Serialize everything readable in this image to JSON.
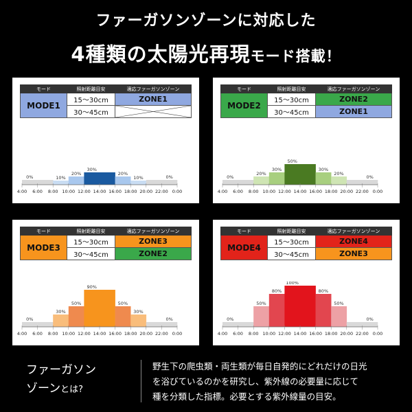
{
  "header": {
    "line1": "ファーガソンゾーンに対応した",
    "line2_big": "4種類の太陽光再現",
    "line2_small": "モード搭載！"
  },
  "table_headers": [
    "モード",
    "照射距離目安",
    "適応ファーガソンゾーン"
  ],
  "colors": {
    "background": "#000000",
    "panel": "#ffffff",
    "zone1": "#8fa8e0",
    "zone2": "#3aa84a",
    "zone3": "#f7941d",
    "zone4": "#e2231a"
  },
  "time_labels": [
    "4:00",
    "6:00",
    "8:00",
    "10:00",
    "12:00",
    "14:00",
    "16:00",
    "18:00",
    "20:00",
    "22:00",
    "0:00"
  ],
  "modes": [
    {
      "name": "MODE1",
      "mode_color": "#8fa8e0",
      "rows": [
        {
          "distance": "15〜30cm",
          "zone": "ZONE1",
          "zone_color": "#8fa8e0",
          "crossed": false
        },
        {
          "distance": "30〜45cm",
          "zone": "",
          "zone_color": "#ffffff",
          "crossed": true
        }
      ],
      "chart_data": {
        "type": "bar",
        "categories": [
          "4:00-6:00",
          "6:00-8:00",
          "8:00-10:00",
          "10:00-12:00",
          "12:00-14:00",
          "14:00-16:00",
          "16:00-18:00",
          "18:00-20:00",
          "20:00-22:00",
          "22:00-0:00"
        ],
        "values": [
          0,
          0,
          10,
          20,
          30,
          30,
          20,
          10,
          0,
          0
        ],
        "labels": [
          "0%",
          "",
          "10%",
          "20%",
          "30%",
          "",
          "20%",
          "10%",
          "",
          "0%"
        ],
        "colors": [
          "#d9d9d9",
          "#d9d9d9",
          "#c9ddf3",
          "#a9c8ee",
          "#1a5aa0",
          "#1a5aa0",
          "#a9c8ee",
          "#c9ddf3",
          "#d9d9d9",
          "#d9d9d9"
        ],
        "ylim": [
          0,
          100
        ]
      }
    },
    {
      "name": "MODE2",
      "mode_color": "#3aa84a",
      "rows": [
        {
          "distance": "15〜30cm",
          "zone": "ZONE2",
          "zone_color": "#3aa84a",
          "crossed": false
        },
        {
          "distance": "30〜45cm",
          "zone": "ZONE1",
          "zone_color": "#8fa8e0",
          "crossed": false
        }
      ],
      "chart_data": {
        "type": "bar",
        "categories": [
          "4:00-6:00",
          "6:00-8:00",
          "8:00-10:00",
          "10:00-12:00",
          "12:00-14:00",
          "14:00-16:00",
          "16:00-18:00",
          "18:00-20:00",
          "20:00-22:00",
          "22:00-0:00"
        ],
        "values": [
          0,
          0,
          20,
          30,
          50,
          50,
          30,
          20,
          0,
          0
        ],
        "labels": [
          "0%",
          "",
          "20%",
          "30%",
          "50%",
          "",
          "30%",
          "20%",
          "",
          "0%"
        ],
        "colors": [
          "#d9d9d9",
          "#d9d9d9",
          "#cfe5b4",
          "#a8cf7f",
          "#4a7a22",
          "#4a7a22",
          "#a8cf7f",
          "#cfe5b4",
          "#d9d9d9",
          "#d9d9d9"
        ],
        "ylim": [
          0,
          100
        ]
      }
    },
    {
      "name": "MODE3",
      "mode_color": "#f7941d",
      "rows": [
        {
          "distance": "15〜30cm",
          "zone": "ZONE3",
          "zone_color": "#f7941d",
          "crossed": false
        },
        {
          "distance": "30〜45cm",
          "zone": "ZONE2",
          "zone_color": "#3aa84a",
          "crossed": false
        }
      ],
      "chart_data": {
        "type": "bar",
        "categories": [
          "4:00-6:00",
          "6:00-8:00",
          "8:00-10:00",
          "10:00-12:00",
          "12:00-14:00",
          "14:00-16:00",
          "16:00-18:00",
          "18:00-20:00",
          "20:00-22:00",
          "22:00-0:00"
        ],
        "values": [
          0,
          0,
          30,
          50,
          90,
          90,
          50,
          30,
          0,
          0
        ],
        "labels": [
          "0%",
          "",
          "30%",
          "50%",
          "90%",
          "",
          "50%",
          "30%",
          "",
          "0%"
        ],
        "colors": [
          "#d9d9d9",
          "#d9d9d9",
          "#f9bd7b",
          "#ef8a4e",
          "#f7941d",
          "#f7941d",
          "#ef8a4e",
          "#f9bd7b",
          "#d9d9d9",
          "#d9d9d9"
        ],
        "ylim": [
          0,
          100
        ]
      }
    },
    {
      "name": "MODE4",
      "mode_color": "#e2231a",
      "rows": [
        {
          "distance": "15〜30cm",
          "zone": "ZONE4",
          "zone_color": "#e2231a",
          "crossed": false
        },
        {
          "distance": "30〜45cm",
          "zone": "ZONE3",
          "zone_color": "#f7941d",
          "crossed": false
        }
      ],
      "chart_data": {
        "type": "bar",
        "categories": [
          "4:00-6:00",
          "6:00-8:00",
          "8:00-10:00",
          "10:00-12:00",
          "12:00-14:00",
          "14:00-16:00",
          "16:00-18:00",
          "18:00-20:00",
          "20:00-22:00",
          "22:00-0:00"
        ],
        "values": [
          0,
          0,
          50,
          80,
          100,
          100,
          80,
          50,
          0,
          0
        ],
        "labels": [
          "0%",
          "",
          "50%",
          "80%",
          "100%",
          "",
          "80%",
          "50%",
          "",
          "0%"
        ],
        "colors": [
          "#d9d9d9",
          "#d9d9d9",
          "#eda1a5",
          "#e2464f",
          "#e2141c",
          "#e2141c",
          "#e2464f",
          "#eda1a5",
          "#d9d9d9",
          "#d9d9d9"
        ],
        "ylim": [
          0,
          100
        ]
      }
    }
  ],
  "footer": {
    "term_line1": "ファーガソン",
    "term_line2_big": "ゾーン",
    "term_line2_small": "とは?",
    "description": [
      "野生下の爬虫類・両生類が毎日自発的にどれだけの日光",
      "を浴びているのかを研究し、紫外線の必要量に応じて",
      "種を分類した指標。必要とする紫外線量の目安。"
    ]
  }
}
